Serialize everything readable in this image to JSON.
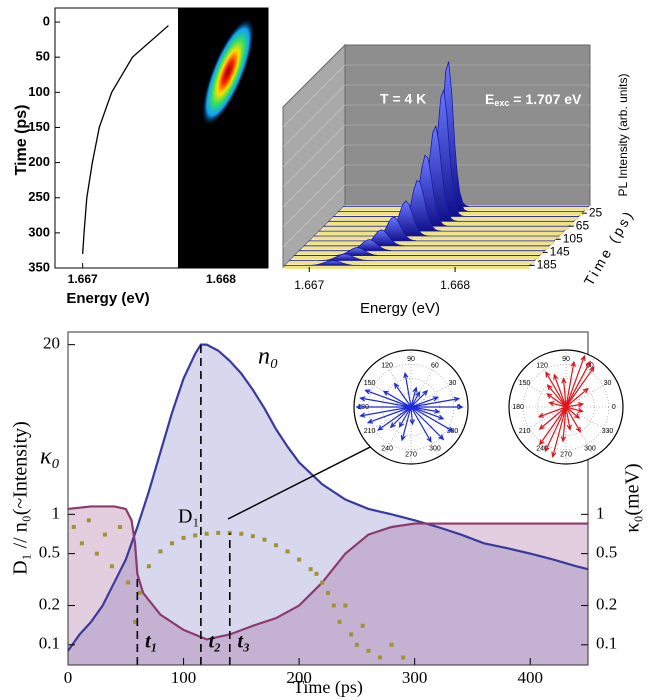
{
  "chart_data": [
    {
      "type": "line",
      "xlabel": "Energy (eV)",
      "ylabel": "Time (ps)",
      "color": "#000000",
      "x": [
        1.66762,
        1.66736,
        1.66721,
        1.66712,
        1.66707,
        1.66703,
        1.66701,
        1.667
      ],
      "values": [
        5,
        50,
        100,
        150,
        200,
        250,
        300,
        330
      ],
      "xlim": [
        1.6668,
        1.66834
      ],
      "xticks": [
        1.667,
        1.668
      ],
      "ylim": [
        -20,
        350
      ],
      "yticks": [
        0,
        50,
        100,
        150,
        200,
        250,
        300,
        350
      ],
      "y_inverted": true
    },
    {
      "type": "waterfall",
      "xlabel": "Energy (eV)",
      "ylabel": "Time (ps)",
      "zlabel": "PL Intensity (arb. units)",
      "annotations": [
        "T = 4 K",
        {
          "main": "E",
          "sub": "exc",
          "rest": " = 1.707 eV"
        }
      ],
      "color": "#1a1aa8",
      "times": [
        5,
        20,
        35,
        50,
        65,
        80,
        95,
        110,
        125,
        140,
        155,
        170,
        185
      ],
      "peak_energy": [
        1.66755,
        1.66757,
        1.66757,
        1.66755,
        1.66752,
        1.6675,
        1.66745,
        1.6674,
        1.66735,
        1.6673,
        1.66725,
        1.6672,
        1.66715
      ],
      "values": [
        0.55,
        0.95,
        0.8,
        0.6,
        0.45,
        0.32,
        0.22,
        0.15,
        0.1,
        0.07,
        0.05,
        0.04,
        0.03
      ],
      "xlim": [
        1.66682,
        1.6685
      ],
      "xticks": [
        1.667,
        1.668
      ],
      "ylim": [
        0,
        190
      ],
      "yticks": [
        25,
        65,
        105,
        145,
        185
      ],
      "zlim": [
        0,
        1
      ]
    },
    {
      "type": "log-line",
      "xlabel": "Time (ps)",
      "ylabel": "D₁ // n₀(~Intensity)",
      "y2label": "κ₀(meV)",
      "log_y": true,
      "xlim": [
        0,
        450
      ],
      "xticks": [
        0,
        100,
        200,
        300,
        400
      ],
      "ylim": [
        0.07,
        25
      ],
      "yticks": [
        0.1,
        0.2,
        0.5,
        1,
        20
      ],
      "y2lim": [
        0.07,
        25
      ],
      "y2ticks": [
        0.1,
        0.2,
        0.5,
        1
      ],
      "series": [
        {
          "name": "n₀",
          "color": "#3a3a9c",
          "fill": "rgba(110,110,190,0.28)",
          "style": "line",
          "x": [
            0,
            10,
            20,
            30,
            40,
            50,
            55,
            60,
            70,
            80,
            90,
            100,
            110,
            115,
            120,
            130,
            140,
            150,
            160,
            170,
            180,
            190,
            200,
            220,
            240,
            260,
            280,
            300,
            320,
            340,
            360,
            380,
            400,
            420,
            440,
            450
          ],
          "values": [
            0.09,
            0.12,
            0.15,
            0.2,
            0.3,
            0.45,
            0.6,
            0.8,
            1.5,
            3,
            6,
            11,
            17,
            20,
            20,
            18,
            15,
            12,
            9,
            6.5,
            4.5,
            3.3,
            2.5,
            1.7,
            1.3,
            1.1,
            1.0,
            0.9,
            0.8,
            0.7,
            0.6,
            0.55,
            0.5,
            0.45,
            0.4,
            0.38
          ]
        },
        {
          "name": "κ₀",
          "color": "#8c3a6e",
          "fill": "rgba(150,80,140,0.28)",
          "style": "line",
          "axis": "y2",
          "x": [
            0,
            20,
            40,
            50,
            55,
            58,
            60,
            65,
            80,
            100,
            120,
            140,
            160,
            180,
            200,
            220,
            240,
            260,
            280,
            300,
            340,
            380,
            420,
            450
          ],
          "values": [
            1.1,
            1.15,
            1.15,
            1.1,
            0.9,
            0.6,
            0.35,
            0.25,
            0.17,
            0.13,
            0.11,
            0.12,
            0.14,
            0.16,
            0.2,
            0.3,
            0.5,
            0.7,
            0.8,
            0.85,
            0.85,
            0.85,
            0.85,
            0.85
          ]
        },
        {
          "name": "D₁",
          "color": "#a39232",
          "style": "points",
          "x": [
            5,
            12,
            18,
            25,
            32,
            38,
            45,
            52,
            58,
            62,
            70,
            80,
            90,
            100,
            110,
            120,
            130,
            140,
            150,
            160,
            170,
            180,
            190,
            200,
            210,
            215,
            220,
            225,
            230,
            235,
            240,
            245,
            250,
            255,
            260,
            270,
            280,
            290
          ],
          "values": [
            0.8,
            0.6,
            0.9,
            0.5,
            0.7,
            0.4,
            0.8,
            0.3,
            0.15,
            0.25,
            0.4,
            0.52,
            0.6,
            0.66,
            0.69,
            0.71,
            0.72,
            0.72,
            0.71,
            0.68,
            0.64,
            0.58,
            0.52,
            0.45,
            0.38,
            0.35,
            0.3,
            0.25,
            0.2,
            0.15,
            0.2,
            0.12,
            0.1,
            0.14,
            0.09,
            0.08,
            0.1,
            0.08
          ]
        }
      ],
      "vlines": [
        {
          "value": 60,
          "label": "t₁"
        },
        {
          "value": 115,
          "label": "t₂"
        },
        {
          "value": 140,
          "label": "t₃"
        }
      ]
    },
    {
      "type": "polar",
      "color": "#1f2bd6",
      "rlim": [
        0,
        1
      ],
      "thetaticks": [
        0,
        30,
        60,
        90,
        120,
        150,
        180,
        210,
        240,
        270,
        300,
        330
      ],
      "angles": [
        0,
        10,
        20,
        45,
        60,
        75,
        100,
        125,
        150,
        160,
        170,
        180,
        190,
        200,
        215,
        225,
        240,
        255,
        275,
        300,
        315,
        330,
        340,
        350
      ],
      "values": [
        0.9,
        0.85,
        0.5,
        0.4,
        0.3,
        0.35,
        0.6,
        0.5,
        0.55,
        0.85,
        0.9,
        0.95,
        0.9,
        0.8,
        0.7,
        0.5,
        0.4,
        0.6,
        0.3,
        0.7,
        0.8,
        0.85,
        0.6,
        0.5
      ]
    },
    {
      "type": "polar",
      "color": "#e0141a",
      "rlim": [
        0,
        1
      ],
      "thetaticks": [
        0,
        30,
        60,
        90,
        120,
        150,
        180,
        210,
        240,
        270,
        300,
        330
      ],
      "angles": [
        10,
        40,
        55,
        62,
        70,
        80,
        95,
        110,
        120,
        130,
        145,
        165,
        200,
        220,
        235,
        245,
        255,
        265,
        280,
        300,
        320,
        345
      ],
      "values": [
        0.3,
        0.5,
        0.85,
        0.9,
        0.95,
        0.8,
        0.5,
        0.6,
        0.7,
        0.5,
        0.4,
        0.3,
        0.5,
        0.6,
        0.8,
        0.85,
        0.9,
        0.6,
        0.4,
        0.5,
        0.3,
        0.3
      ]
    }
  ]
}
